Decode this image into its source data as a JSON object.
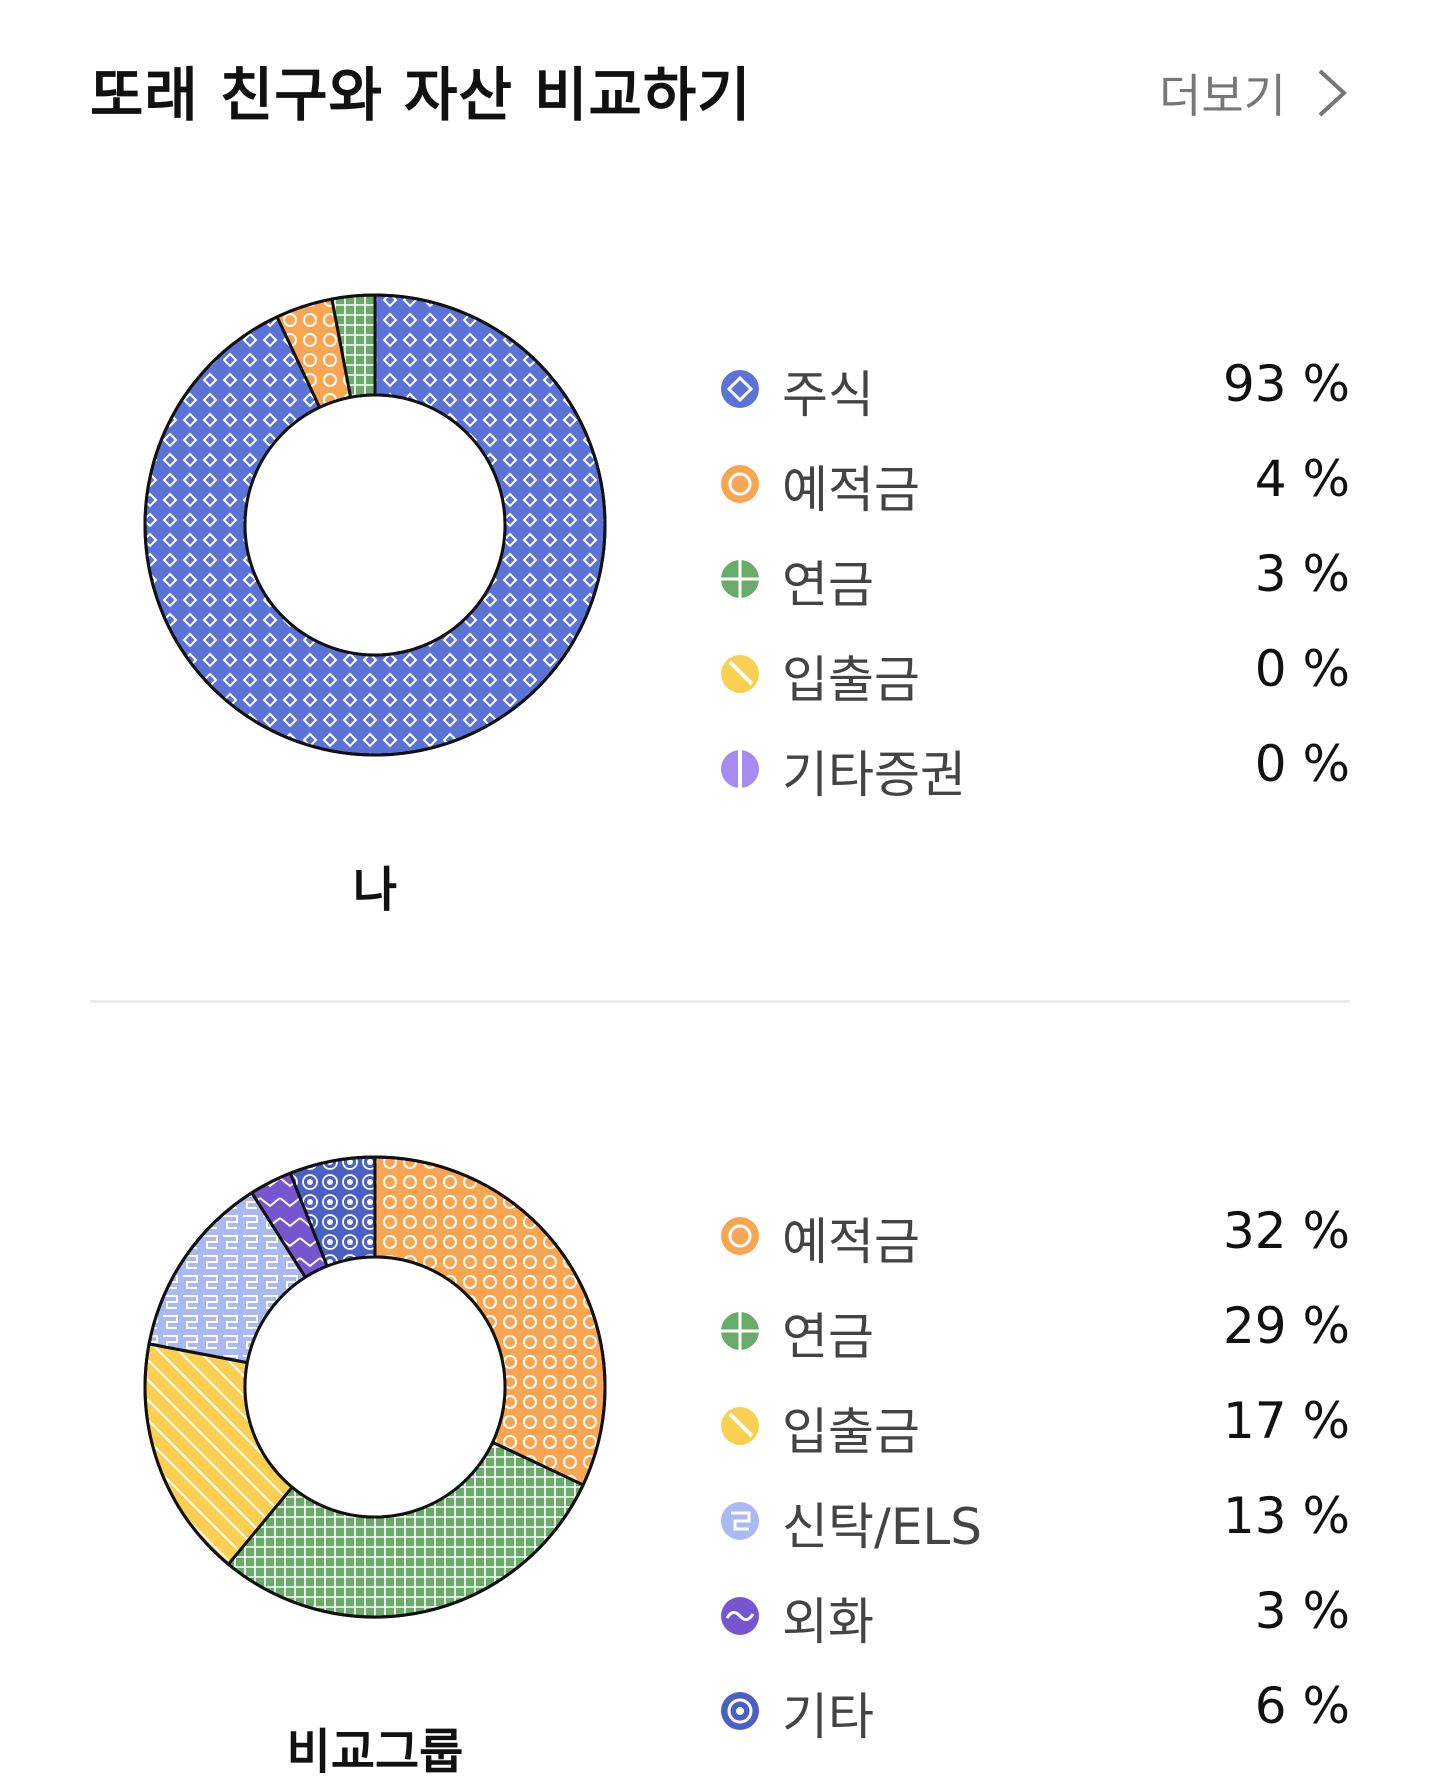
{
  "header": {
    "title": "또래 친구와 자산 비교하기",
    "more_label": "더보기"
  },
  "chart_data": [
    {
      "type": "pie",
      "variant": "donut",
      "caption": "나",
      "categories": [
        "주식",
        "예적금",
        "연금",
        "입출금",
        "기타증권"
      ],
      "values": [
        93,
        4,
        3,
        0,
        0
      ],
      "value_labels": [
        "93 %",
        "4 %",
        "3 %",
        "0 %",
        "0 %"
      ],
      "colors": [
        "#5b73d6",
        "#f9a552",
        "#6aab6c",
        "#fbd052",
        "#a48cf2"
      ],
      "icons": [
        "diamond-pattern-icon",
        "circle-pattern-icon",
        "grid-pattern-icon",
        "stripe-pattern-icon",
        "half-pattern-icon"
      ],
      "legend_position": "right"
    },
    {
      "type": "pie",
      "variant": "donut",
      "caption": "비교그룹",
      "categories": [
        "예적금",
        "연금",
        "입출금",
        "신탁/ELS",
        "외화",
        "기타"
      ],
      "values": [
        32,
        29,
        17,
        13,
        3,
        6
      ],
      "value_labels": [
        "32 %",
        "29 %",
        "17 %",
        "13 %",
        "3 %",
        "6 %"
      ],
      "colors": [
        "#f9a552",
        "#6aab6c",
        "#fbd052",
        "#a9b9f3",
        "#7655cf",
        "#4a60c4"
      ],
      "icons": [
        "circle-pattern-icon",
        "grid-pattern-icon",
        "stripe-pattern-icon",
        "meander-pattern-icon",
        "wave-pattern-icon",
        "target-pattern-icon"
      ],
      "legend_position": "right"
    }
  ]
}
